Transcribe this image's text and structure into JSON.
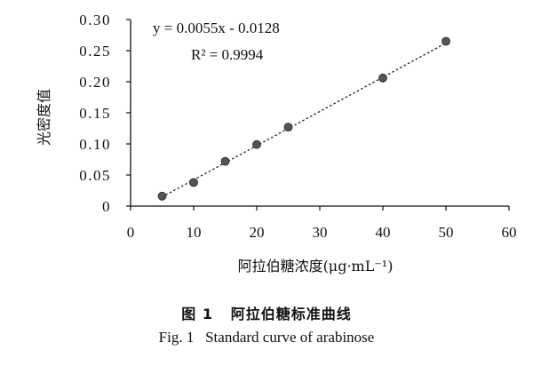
{
  "chart_data": {
    "type": "scatter",
    "x": [
      5,
      10,
      15,
      20,
      25,
      40,
      50
    ],
    "y": [
      0.016,
      0.038,
      0.072,
      0.099,
      0.127,
      0.206,
      0.265
    ],
    "xlim": [
      0,
      60
    ],
    "ylim": [
      0,
      0.3
    ],
    "x_ticks": [
      "0",
      "10",
      "20",
      "30",
      "40",
      "50",
      "60"
    ],
    "y_ticks": [
      "0",
      "0.05",
      "0.10",
      "0.15",
      "0.20",
      "0.25",
      "0.30"
    ],
    "x_tick_values": [
      0,
      10,
      20,
      30,
      40,
      50,
      60
    ],
    "y_tick_values": [
      0,
      0.05,
      0.1,
      0.15,
      0.2,
      0.25,
      0.3
    ],
    "xlabel": "阿拉伯糖浓度(μg·mL⁻¹)",
    "ylabel": "光密度值",
    "trendline": {
      "style": "dotted",
      "slope": 0.0055,
      "intercept": -0.0128,
      "x_range": [
        5,
        50
      ],
      "equation": "y = 0.0055x - 0.0128",
      "r2_label": "R² = 0.9994"
    },
    "grid": false,
    "legend": "none",
    "marker_color": "#555555"
  },
  "caption": {
    "figure_number_cn": "图 1",
    "title_cn": "阿拉伯糖标准曲线",
    "figure_number_en": "Fig. 1",
    "title_en": "Standard curve of arabinose"
  }
}
